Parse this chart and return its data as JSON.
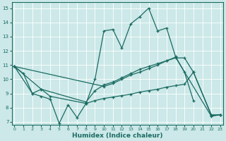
{
  "xlabel": "Humidex (Indice chaleur)",
  "bg_color": "#cce8e8",
  "line_color": "#1a6b62",
  "grid_color": "#ffffff",
  "yticks": [
    7,
    8,
    9,
    10,
    11,
    12,
    13,
    14,
    15
  ],
  "xticks": [
    0,
    1,
    2,
    3,
    4,
    5,
    6,
    7,
    8,
    9,
    10,
    11,
    12,
    13,
    14,
    15,
    16,
    17,
    18,
    19,
    20,
    21,
    22,
    23
  ],
  "xlim": [
    -0.3,
    23.3
  ],
  "ylim": [
    6.8,
    15.4
  ],
  "line1_x": [
    0,
    1,
    2,
    3,
    4,
    5,
    6,
    7,
    8,
    9,
    10,
    11,
    12,
    13,
    14,
    15,
    16,
    17,
    18,
    19,
    20
  ],
  "line1_y": [
    10.9,
    10.4,
    9.0,
    8.8,
    8.6,
    6.9,
    8.2,
    7.3,
    8.3,
    10.0,
    13.4,
    13.5,
    12.2,
    13.9,
    14.4,
    15.0,
    13.4,
    13.6,
    11.6,
    10.5,
    8.5
  ],
  "line2_x": [
    0,
    2,
    3,
    8,
    9,
    10,
    11,
    12,
    13,
    14,
    15,
    16,
    17,
    18,
    19,
    20,
    22,
    23
  ],
  "line2_y": [
    10.9,
    9.0,
    9.3,
    8.4,
    9.2,
    9.6,
    9.8,
    10.1,
    10.4,
    10.7,
    10.9,
    11.1,
    11.3,
    11.5,
    11.5,
    10.5,
    7.5,
    7.5
  ],
  "line3_x": [
    0,
    3,
    4,
    8,
    9,
    10,
    11,
    12,
    13,
    14,
    15,
    16,
    17,
    18,
    19,
    20,
    22,
    23
  ],
  "line3_y": [
    10.9,
    9.3,
    8.8,
    8.3,
    8.5,
    8.65,
    8.75,
    8.85,
    8.95,
    9.1,
    9.2,
    9.3,
    9.45,
    9.55,
    9.65,
    10.5,
    7.45,
    7.5
  ],
  "line4_x": [
    0,
    10,
    11,
    12,
    13,
    14,
    15,
    16,
    17,
    18,
    22,
    23
  ],
  "line4_y": [
    10.9,
    9.5,
    9.7,
    10.0,
    10.3,
    10.5,
    10.75,
    11.0,
    11.3,
    11.55,
    7.4,
    7.5
  ]
}
